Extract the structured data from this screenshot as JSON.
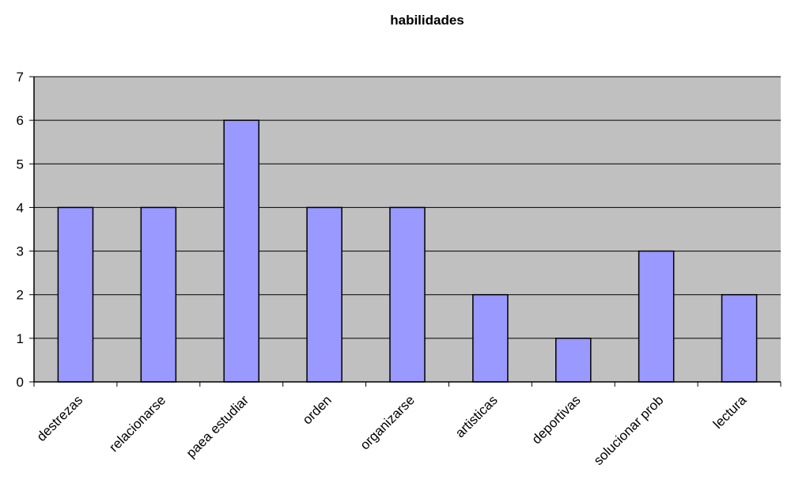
{
  "chart_data": {
    "type": "bar",
    "title": "habilidades",
    "xlabel": "",
    "ylabel": "",
    "categories": [
      "destrezas",
      "relacionarse",
      "paea estudiar",
      "orden",
      "organizarse",
      "artisticas",
      "deportivas",
      "solucionar prob",
      "lectura"
    ],
    "values": [
      4,
      4,
      6,
      4,
      4,
      2,
      1,
      3,
      2
    ],
    "ylim": [
      0,
      7
    ],
    "yticks": [
      0,
      1,
      2,
      3,
      4,
      5,
      6,
      7
    ],
    "grid": true,
    "legend": "none",
    "colors": {
      "plot_background": "#c0c0c0",
      "bar_fill": "#9999ff",
      "bar_stroke": "#000000",
      "gridline": "#000000",
      "axis": "#000000"
    }
  }
}
